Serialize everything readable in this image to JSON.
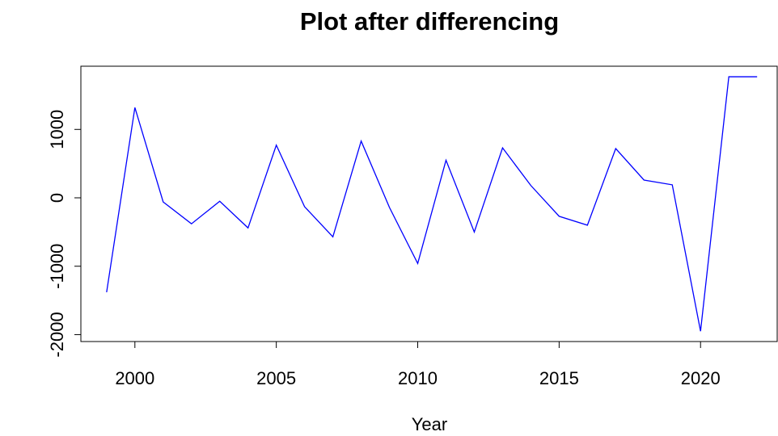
{
  "chart_data": {
    "type": "line",
    "title": "Plot after differencing",
    "x_label": "Year",
    "x": [
      1999,
      2000,
      2001,
      2002,
      2003,
      2004,
      2005,
      2006,
      2007,
      2008,
      2009,
      2010,
      2011,
      2012,
      2013,
      2014,
      2015,
      2016,
      2017,
      2018,
      2019,
      2020,
      2021,
      2022
    ],
    "series": [
      {
        "name": "diff",
        "color": "#0000ff",
        "values": [
          -1380,
          1320,
          -60,
          -380,
          -50,
          -440,
          770,
          -130,
          -570,
          830,
          -140,
          -960,
          550,
          -500,
          730,
          180,
          -270,
          -400,
          720,
          260,
          190,
          -1950,
          1770,
          1770
        ]
      }
    ],
    "xlim": [
      1998.09,
      2022.71
    ],
    "ylim": [
      -2101,
      1924
    ],
    "xticks": [
      2000,
      2005,
      2010,
      2015,
      2020
    ],
    "yticks": [
      -2000,
      -1000,
      0,
      1000
    ]
  }
}
